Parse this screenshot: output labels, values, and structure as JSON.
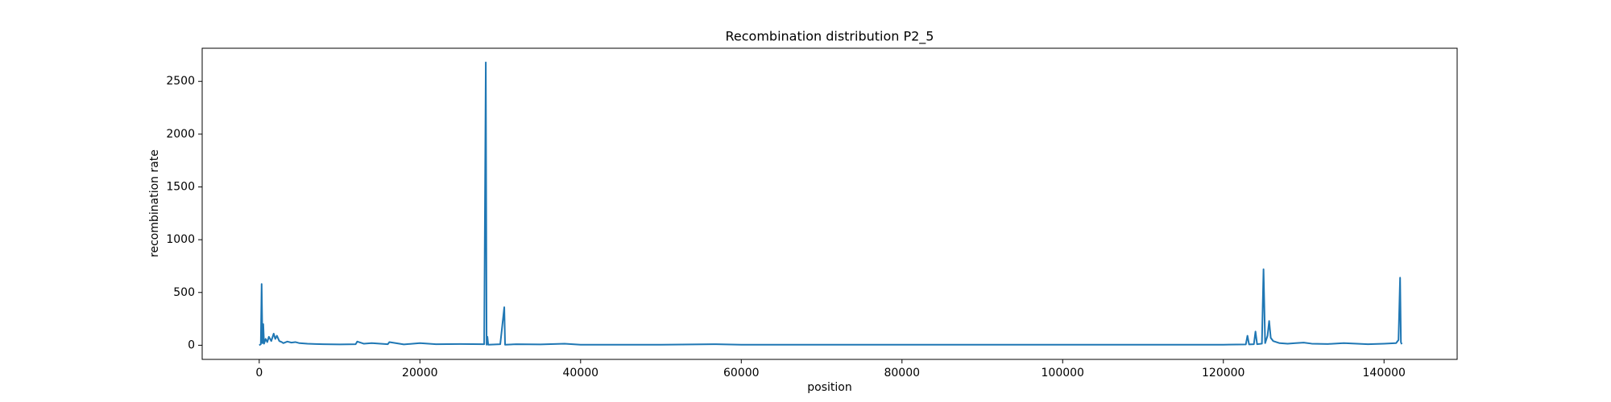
{
  "chart_data": {
    "type": "line",
    "title": "Recombination distribution P2_5",
    "xlabel": "position",
    "ylabel": "recombination rate",
    "color": "#1f77b4",
    "x": [
      0,
      200,
      300,
      400,
      500,
      600,
      800,
      1000,
      1200,
      1500,
      1800,
      2000,
      2200,
      2500,
      2800,
      3000,
      3500,
      4000,
      4500,
      5000,
      6000,
      7000,
      8000,
      10000,
      12000,
      12200,
      13000,
      14000,
      16000,
      16200,
      18000,
      20000,
      22000,
      25000,
      28000,
      28200,
      28300,
      28400,
      28500,
      30000,
      30500,
      30600,
      32000,
      35000,
      38000,
      40000,
      50000,
      56500,
      60000,
      80000,
      100000,
      110000,
      120000,
      122800,
      123000,
      123200,
      123800,
      124000,
      124200,
      124800,
      125000,
      125200,
      125500,
      125700,
      125900,
      126200,
      127000,
      128000,
      129000,
      130000,
      131000,
      133000,
      135000,
      138000,
      140000,
      141500,
      141800,
      142000,
      142100,
      142200
    ],
    "values": [
      0,
      10,
      580,
      20,
      200,
      15,
      60,
      30,
      80,
      40,
      110,
      60,
      90,
      40,
      30,
      20,
      35,
      25,
      30,
      20,
      15,
      12,
      10,
      8,
      10,
      35,
      15,
      20,
      10,
      30,
      8,
      20,
      10,
      12,
      10,
      2680,
      5,
      80,
      5,
      10,
      360,
      5,
      10,
      8,
      15,
      5,
      5,
      10,
      5,
      5,
      5,
      5,
      5,
      8,
      90,
      8,
      10,
      130,
      10,
      15,
      720,
      20,
      90,
      230,
      70,
      40,
      20,
      15,
      20,
      25,
      15,
      12,
      20,
      10,
      15,
      20,
      50,
      640,
      30,
      10
    ],
    "xlim": [
      -7100,
      149100
    ],
    "ylim": [
      -134,
      2814
    ],
    "xticks": [
      0,
      20000,
      40000,
      60000,
      80000,
      100000,
      120000,
      140000
    ],
    "yticks": [
      0,
      500,
      1000,
      1500,
      2000,
      2500
    ]
  }
}
